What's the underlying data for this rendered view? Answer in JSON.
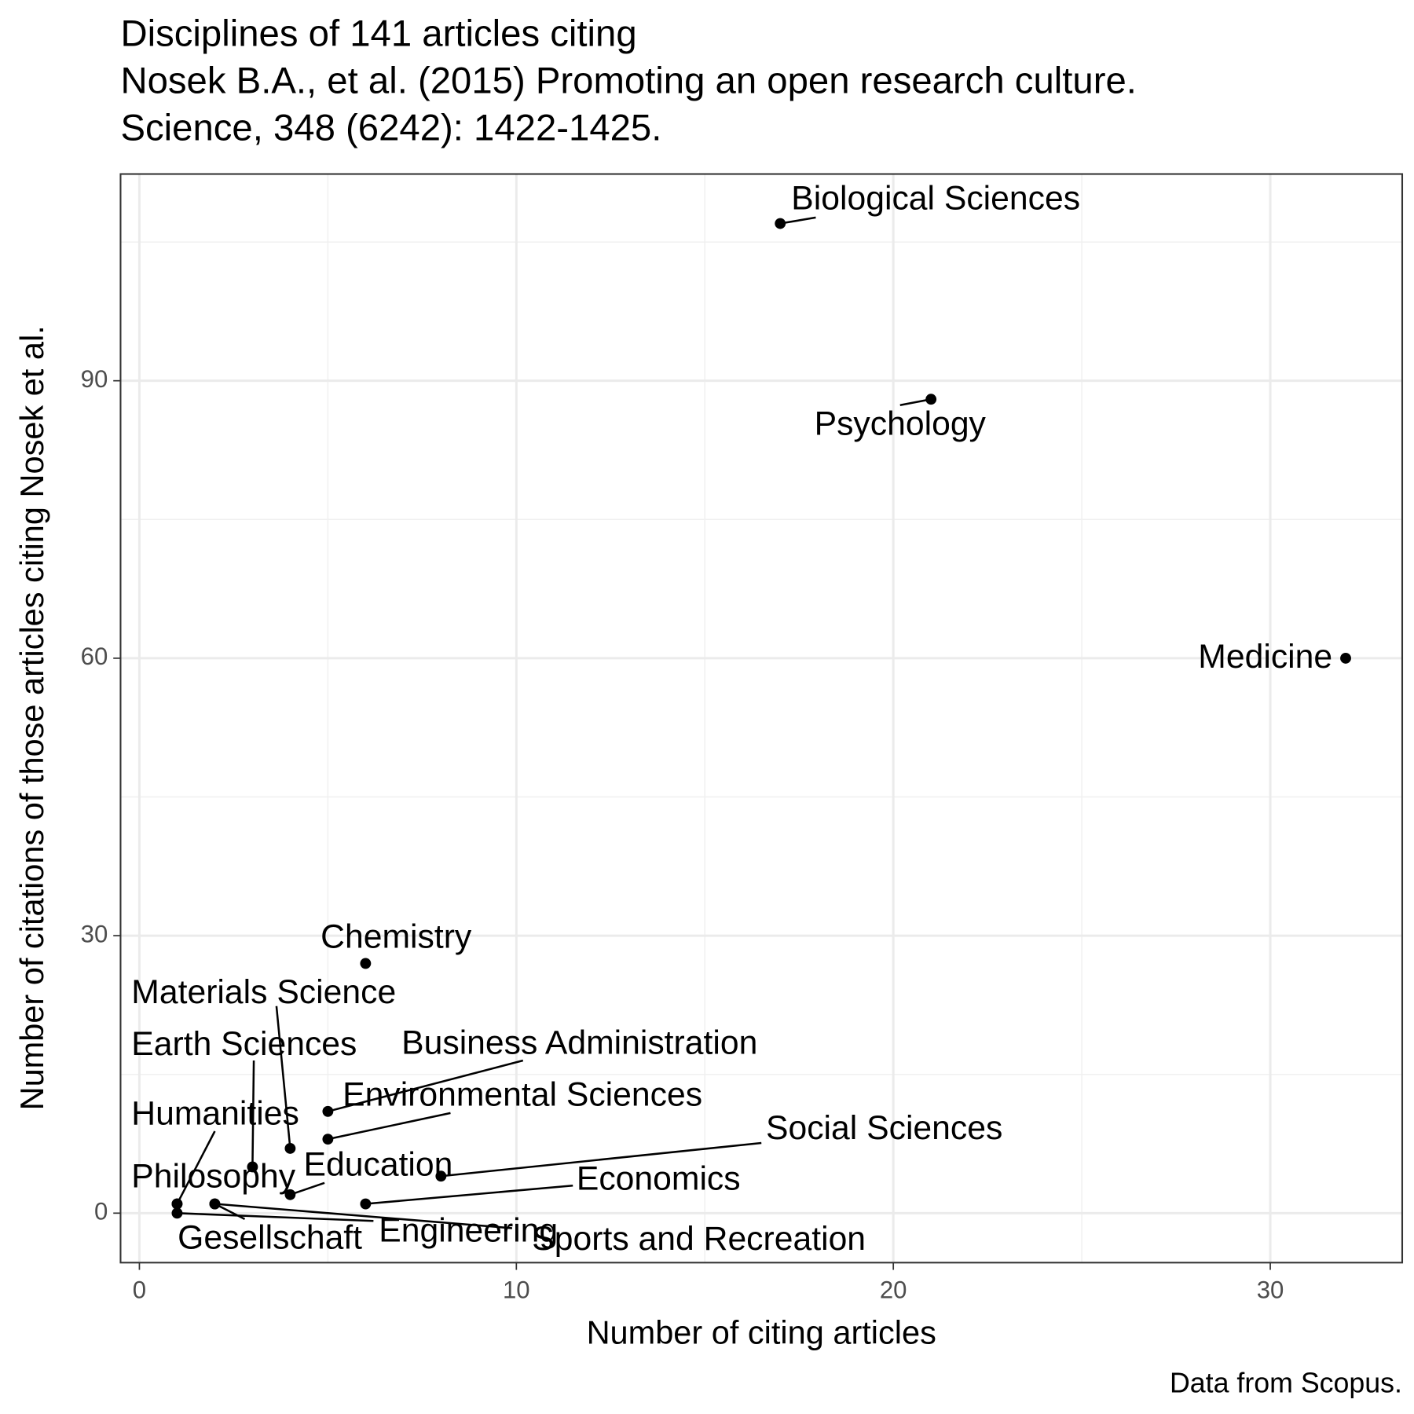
{
  "chart_data": {
    "type": "scatter",
    "title": [
      "Disciplines of 141 articles citing",
      "Nosek B.A., et al. (2015) Promoting an open research culture.",
      "Science, 348 (6242): 1422-1425."
    ],
    "x_label": "Number of citing articles",
    "y_label": "Number of citations of those articles citing Nosek et al.",
    "caption": "Data from Scopus.",
    "labels": [
      "Biological Sciences",
      "Psychology",
      "Medicine",
      "Chemistry",
      "Materials Science",
      "Earth Sciences",
      "Business Administration",
      "Environmental Sciences",
      "Humanities",
      "Social Sciences",
      "Education",
      "Philosophy",
      "Economics",
      "Gesellschaft",
      "Engineering",
      "Sports and Recreation"
    ],
    "x": [
      17,
      21,
      32,
      6,
      4,
      3,
      5,
      5,
      1,
      8,
      4,
      1,
      6,
      2,
      1,
      2
    ],
    "values": [
      107,
      88,
      60,
      27,
      7,
      5,
      11,
      8,
      1,
      4,
      2,
      1,
      1,
      1,
      0,
      1
    ],
    "color": "#000000",
    "xlim": [
      -0.5,
      33.5
    ],
    "xticks": [
      0,
      10,
      20,
      30
    ],
    "xminorticks": [
      5,
      15,
      25
    ],
    "ylim": [
      -5.35,
      112.35
    ],
    "yticks": [
      0,
      30,
      60,
      90
    ],
    "yminorticks": [
      15,
      45,
      75,
      105
    ],
    "grid": true
  }
}
